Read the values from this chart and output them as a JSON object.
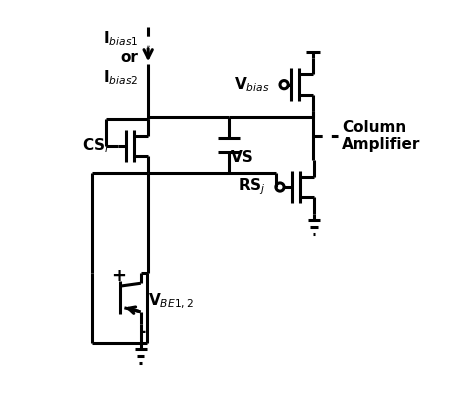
{
  "bg_color": "#ffffff",
  "line_color": "#000000",
  "line_width": 2.2,
  "fig_width": 4.74,
  "fig_height": 4.15,
  "dpi": 100,
  "labels": {
    "ibias": "I$_{bias1}$\nor\nI$_{bias2}$",
    "vbias": "V$_{bias}$",
    "cs": "CS$_i$",
    "vs": "VS",
    "rs": "RS$_j$",
    "vbe": "V$_{BE 1,2}$",
    "col_amp": "Column\nAmplifier"
  }
}
